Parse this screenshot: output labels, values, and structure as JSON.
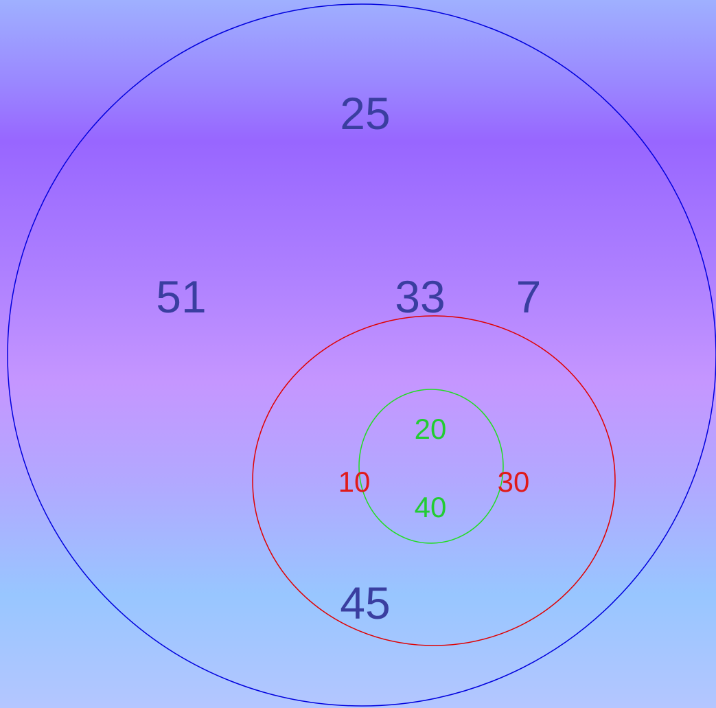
{
  "colors": {
    "outer_circle": "#0000dd",
    "middle_ellipse": "#e00000",
    "inner_circle": "#22dd22",
    "outer_text": "#3a3ea0",
    "middle_text": "#e01a1a",
    "inner_text": "#22cc33"
  },
  "diagram": {
    "outer_labels": {
      "top": "25",
      "left": "51",
      "center": "33",
      "right": "7",
      "bottom": "45"
    },
    "middle_labels": {
      "left": "10",
      "right": "30"
    },
    "inner_labels": {
      "top": "20",
      "bottom": "40"
    }
  }
}
